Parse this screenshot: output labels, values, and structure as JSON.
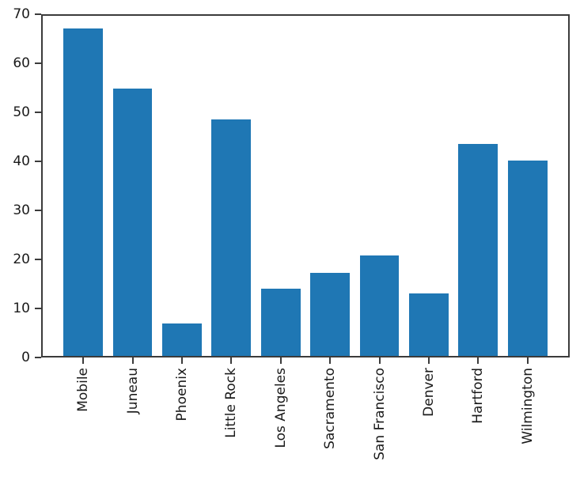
{
  "chart_data": {
    "type": "bar",
    "categories": [
      "Mobile",
      "Juneau",
      "Phoenix",
      "Little Rock",
      "Los Angeles",
      "Sacramento",
      "San Francisco",
      "Denver",
      "Hartford",
      "Wilmington"
    ],
    "values": [
      67.1,
      54.8,
      6.9,
      48.5,
      14.0,
      17.3,
      20.8,
      13.1,
      43.5,
      40.2
    ],
    "title": "",
    "xlabel": "",
    "ylabel": "",
    "ylim": [
      0,
      70
    ],
    "yticks": [
      0,
      10,
      20,
      30,
      40,
      50,
      60,
      70
    ],
    "bar_color": "#1f77b4",
    "axis_color": "#3b3b3b",
    "text_color": "#1a1a1a",
    "grid": false,
    "legend": null,
    "bar_width_ratio": 0.8,
    "x_label_rotation_deg": 90
  }
}
